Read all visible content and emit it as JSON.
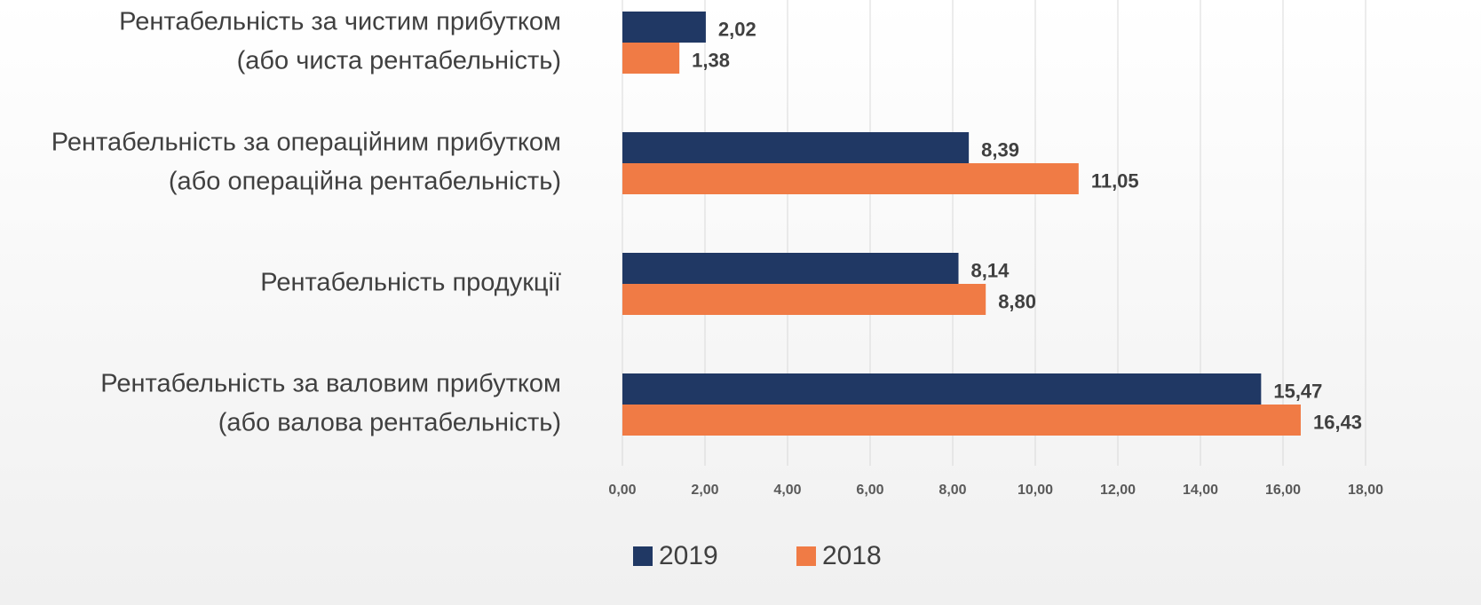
{
  "chart_data": {
    "type": "barh",
    "categories": [
      [
        "Рентабельність за чистим прибутком",
        "(або чиста рентабельність)"
      ],
      [
        "Рентабельність за операційним прибутком",
        "(або операційна рентабельність)"
      ],
      [
        "Рентабельність продукції"
      ],
      [
        "Рентабельність за валовим прибутком",
        "(або валова рентабельність)"
      ]
    ],
    "series": [
      {
        "name": "2019",
        "color": "#203864",
        "values": [
          2.02,
          8.39,
          8.14,
          15.47
        ],
        "value_labels": [
          "2,02",
          "8,39",
          "8,14",
          "15,47"
        ]
      },
      {
        "name": "2018",
        "color": "#f07b45",
        "values": [
          1.38,
          11.05,
          8.8,
          16.43
        ],
        "value_labels": [
          "1,38",
          "11,05",
          "8,80",
          "16,43"
        ]
      }
    ],
    "xlim": [
      0,
      18
    ],
    "xticks": [
      {
        "value": 0,
        "label": "0,00"
      },
      {
        "value": 2,
        "label": "2,00"
      },
      {
        "value": 4,
        "label": "4,00"
      },
      {
        "value": 6,
        "label": "6,00"
      },
      {
        "value": 8,
        "label": "8,00"
      },
      {
        "value": 10,
        "label": "10,00"
      },
      {
        "value": 12,
        "label": "12,00"
      },
      {
        "value": 14,
        "label": "14,00"
      },
      {
        "value": 16,
        "label": "16,00"
      },
      {
        "value": 18,
        "label": "18,00"
      }
    ],
    "grid": true,
    "legend": "bottom"
  }
}
